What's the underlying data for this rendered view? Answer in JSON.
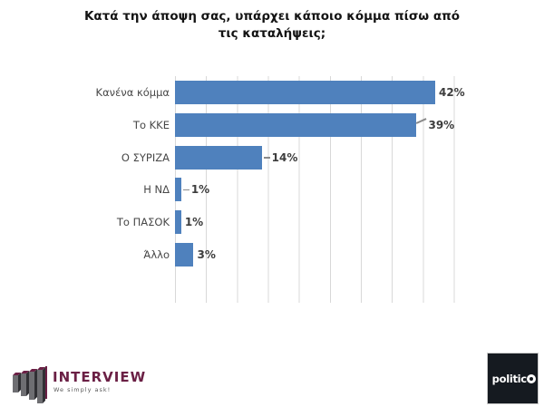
{
  "title": {
    "line1": "Κατά την άποψη σας, υπάρχει κάποιο κόμμα πίσω από",
    "line2": "τις καταλήψεις;"
  },
  "chart_data": {
    "type": "bar",
    "orientation": "horizontal",
    "title": "Κατά την άποψη σας, υπάρχει κάποιο κόμμα πίσω από τις καταλήψεις;",
    "categories": [
      "Κανένα κόμμα",
      "Το ΚΚΕ",
      "Ο ΣΥΡΙΖΑ",
      "Η ΝΔ",
      "Το ΠΑΣΟΚ",
      "Άλλο"
    ],
    "values": [
      42,
      39,
      14,
      1,
      1,
      3
    ],
    "value_labels": [
      "42%",
      "39%",
      "14%",
      "1%",
      "1%",
      "3%"
    ],
    "leaders": [
      "none",
      "bent",
      "dash",
      "dash",
      "none",
      "none"
    ],
    "xlim": [
      0,
      45
    ],
    "gridline_step": 5,
    "grid": true,
    "legend": false,
    "bar_color": "#4f81bd",
    "xlabel": "",
    "ylabel": ""
  },
  "footer": {
    "interview": {
      "name": "INTERVIEW",
      "tagline": "We simply ask!"
    },
    "politico": {
      "text_part": "politic",
      "brand": "politico"
    }
  },
  "colors": {
    "bar": "#4f81bd",
    "interview_maroon": "#6b2045",
    "politico_bg": "#151a20"
  }
}
